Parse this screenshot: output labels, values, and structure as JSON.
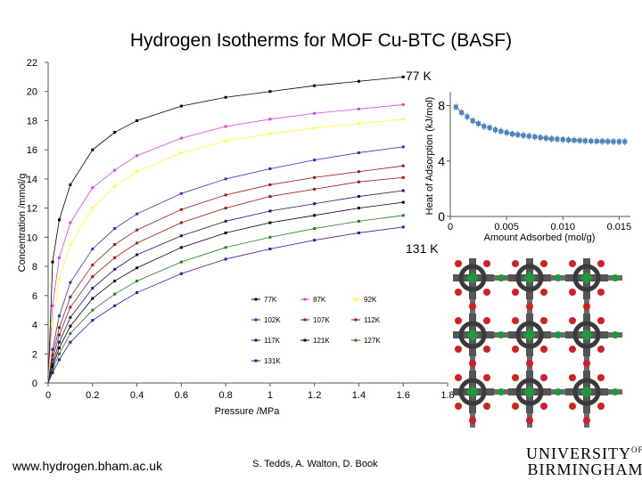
{
  "title": "Hydrogen Isotherms for MOF Cu-BTC (BASF)",
  "footer": {
    "url": "www.hydrogen.bham.ac.uk",
    "authors": "S. Tedds, A. Walton, D. Book",
    "logo_line1": "UNIVERSITY",
    "logo_of": "OF",
    "logo_line2": "BIRMINGHAM"
  },
  "annotations": {
    "top": "77 K",
    "bottom": "131 K"
  },
  "chart_data": [
    {
      "type": "line",
      "xlabel": "Pressure /MPa",
      "ylabel": "Concentration /mmol/g",
      "xlim": [
        0,
        1.8
      ],
      "ylim": [
        0,
        22
      ],
      "xticks": [
        "0",
        "0.2",
        "0.4",
        "0.6",
        "0.8",
        "1",
        "1.2",
        "1.4",
        "1.6",
        "1.8"
      ],
      "yticks": [
        "0",
        "2",
        "4",
        "6",
        "8",
        "10",
        "12",
        "14",
        "16",
        "18",
        "20",
        "22"
      ],
      "grid": false,
      "legend_position": "bottom-right",
      "x": [
        0.0,
        0.02,
        0.05,
        0.1,
        0.2,
        0.3,
        0.4,
        0.6,
        0.8,
        1.0,
        1.2,
        1.4,
        1.6
      ],
      "series": [
        {
          "name": "77K",
          "color": "#000000",
          "values": [
            0,
            8.3,
            11.2,
            13.6,
            16.0,
            17.2,
            18.0,
            19.0,
            19.6,
            20.0,
            20.4,
            20.7,
            21.0
          ]
        },
        {
          "name": "87K",
          "color": "#e040e0",
          "values": [
            0,
            5.3,
            8.6,
            11.0,
            13.4,
            14.6,
            15.6,
            16.8,
            17.6,
            18.1,
            18.5,
            18.8,
            19.1
          ]
        },
        {
          "name": "92K",
          "color": "#ffff33",
          "values": [
            0,
            4.0,
            7.1,
            9.5,
            12.0,
            13.5,
            14.5,
            15.8,
            16.6,
            17.1,
            17.5,
            17.8,
            18.1
          ]
        },
        {
          "name": "102K",
          "color": "#3030c0",
          "values": [
            0,
            2.3,
            4.6,
            6.9,
            9.2,
            10.6,
            11.6,
            13.0,
            14.0,
            14.7,
            15.3,
            15.8,
            16.2
          ]
        },
        {
          "name": "107K",
          "color": "#a01818",
          "values": [
            0,
            1.9,
            3.8,
            5.9,
            8.1,
            9.5,
            10.5,
            11.9,
            12.9,
            13.6,
            14.1,
            14.5,
            14.9
          ]
        },
        {
          "name": "112K",
          "color": "#a01818",
          "values": [
            0,
            1.6,
            3.3,
            5.2,
            7.3,
            8.6,
            9.6,
            11.0,
            12.0,
            12.8,
            13.3,
            13.8,
            14.1
          ]
        },
        {
          "name": "117K",
          "color": "#1a1a6a",
          "values": [
            0,
            1.3,
            2.8,
            4.5,
            6.5,
            7.8,
            8.8,
            10.1,
            11.1,
            11.8,
            12.3,
            12.8,
            13.2
          ]
        },
        {
          "name": "121K",
          "color": "#000000",
          "values": [
            0,
            1.1,
            2.4,
            3.9,
            5.8,
            7.0,
            7.9,
            9.3,
            10.3,
            11.0,
            11.5,
            12.0,
            12.4
          ]
        },
        {
          "name": "127K",
          "color": "#208020",
          "values": [
            0,
            0.9,
            2.0,
            3.4,
            5.0,
            6.1,
            7.0,
            8.3,
            9.3,
            10.0,
            10.6,
            11.1,
            11.5
          ]
        },
        {
          "name": "131K",
          "color": "#2020a0",
          "values": [
            0,
            0.7,
            1.6,
            2.8,
            4.3,
            5.3,
            6.2,
            7.5,
            8.5,
            9.2,
            9.8,
            10.3,
            10.7
          ]
        }
      ]
    },
    {
      "type": "line",
      "xlabel": "Amount Adsorbed (mol/g)",
      "ylabel": "Heat of Adsorption (kJ/mol)",
      "xlim": [
        0,
        0.016
      ],
      "ylim": [
        0,
        9
      ],
      "xticks": [
        "0",
        "0.005",
        "0.010",
        "0.015"
      ],
      "yticks": [
        "0",
        "4",
        "8"
      ],
      "series_color": "#4a86c0",
      "x": [
        0.0005,
        0.001,
        0.0015,
        0.002,
        0.0025,
        0.003,
        0.0035,
        0.004,
        0.0045,
        0.005,
        0.0055,
        0.006,
        0.0065,
        0.007,
        0.0075,
        0.008,
        0.0085,
        0.009,
        0.0095,
        0.01,
        0.0105,
        0.011,
        0.0115,
        0.012,
        0.0125,
        0.013,
        0.0135,
        0.014,
        0.0145,
        0.015,
        0.0155
      ],
      "y": [
        7.9,
        7.5,
        7.2,
        6.9,
        6.7,
        6.5,
        6.4,
        6.25,
        6.15,
        6.05,
        5.95,
        5.9,
        5.85,
        5.8,
        5.75,
        5.7,
        5.65,
        5.6,
        5.58,
        5.55,
        5.52,
        5.5,
        5.48,
        5.46,
        5.44,
        5.43,
        5.42,
        5.41,
        5.4,
        5.4,
        5.4
      ]
    }
  ]
}
